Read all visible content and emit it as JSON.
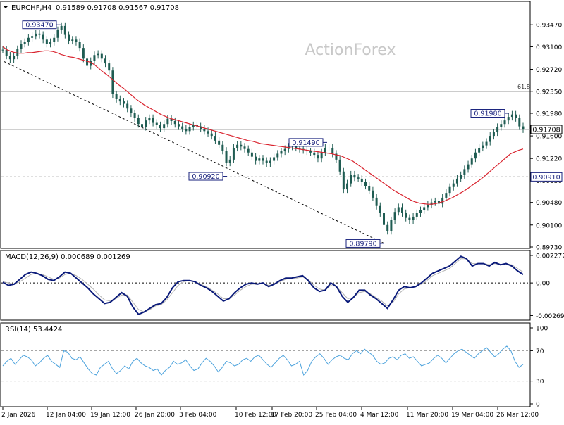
{
  "header": {
    "symbol": "EURCHF,H4",
    "ohlc": "0.91589 0.91708 0.91567 0.91708"
  },
  "watermark": "ActionForex",
  "colors": {
    "candle": "#1f5c52",
    "ma": "#d9232e",
    "macd": "#0a1a7a",
    "signal": "#b3b3b3",
    "rsi": "#4da3dd",
    "label_border": "#1a237e",
    "grid_line": "#000000"
  },
  "chart_data": [
    {
      "type": "line",
      "panel": "price",
      "title": "EURCHF,H4",
      "ylim": [
        0.8973,
        0.9365
      ],
      "y_ticks": [
        "0.93470",
        "0.93100",
        "0.92720",
        "0.92350",
        "0.91980",
        "0.91600",
        "0.91220",
        "0.90850",
        "0.90480",
        "0.90100",
        "0.89730"
      ],
      "current_price": "0.91708",
      "level_line": "0.90910",
      "fib_line": {
        "label": "61.8",
        "value": 0.9235
      },
      "annotations": [
        {
          "text": "0.93470",
          "value": 0.9347,
          "date": "12 Jan 04:00"
        },
        {
          "text": "0.90920",
          "value": 0.9092,
          "date": "3 Feb 04:00"
        },
        {
          "text": "0.91490",
          "value": 0.9149,
          "date": "25 Feb 04:00"
        },
        {
          "text": "0.89790",
          "value": 0.8979,
          "date": "4 Mar 12:00"
        },
        {
          "text": "0.91980",
          "value": 0.9198,
          "date": "26 Mar 04:00"
        }
      ],
      "series": [
        {
          "name": "close",
          "values": [
            0.9305,
            0.9295,
            0.9289,
            0.9295,
            0.9306,
            0.9315,
            0.9318,
            0.9325,
            0.9328,
            0.9332,
            0.933,
            0.9322,
            0.9315,
            0.9318,
            0.9325,
            0.9338,
            0.9345,
            0.933,
            0.932,
            0.9322,
            0.9318,
            0.9308,
            0.929,
            0.9278,
            0.9286,
            0.9296,
            0.9298,
            0.929,
            0.9282,
            0.927,
            0.923,
            0.9222,
            0.9218,
            0.9214,
            0.9206,
            0.9198,
            0.919,
            0.918,
            0.9175,
            0.9186,
            0.919,
            0.9182,
            0.9178,
            0.9173,
            0.918,
            0.9189,
            0.9185,
            0.918,
            0.9176,
            0.9172,
            0.9168,
            0.9175,
            0.9178,
            0.9176,
            0.9172,
            0.9168,
            0.9164,
            0.916,
            0.9152,
            0.9145,
            0.9135,
            0.9115,
            0.912,
            0.914,
            0.9145,
            0.9142,
            0.9138,
            0.9132,
            0.9125,
            0.9118,
            0.9122,
            0.9118,
            0.9114,
            0.9118,
            0.9124,
            0.913,
            0.9134,
            0.9138,
            0.9142,
            0.9145,
            0.914,
            0.9138,
            0.9136,
            0.9134,
            0.9132,
            0.9128,
            0.9122,
            0.9132,
            0.914,
            0.914,
            0.913,
            0.912,
            0.91,
            0.907,
            0.908,
            0.9095,
            0.909,
            0.9088,
            0.9082,
            0.9076,
            0.9068,
            0.9056,
            0.9042,
            0.903,
            0.901,
            0.9,
            0.9018,
            0.9032,
            0.904,
            0.903,
            0.9022,
            0.9018,
            0.9024,
            0.903,
            0.9035,
            0.904,
            0.9044,
            0.9048,
            0.905,
            0.9046,
            0.9056,
            0.9064,
            0.9074,
            0.908,
            0.9088,
            0.9094,
            0.9104,
            0.9112,
            0.9122,
            0.9132,
            0.914,
            0.9144,
            0.915,
            0.916,
            0.9166,
            0.9175,
            0.918,
            0.9186,
            0.9192,
            0.9196,
            0.919,
            0.9176,
            0.9171
          ]
        },
        {
          "name": "MA",
          "values": [
            0.931,
            0.9305,
            0.9302,
            0.93,
            0.9299,
            0.9299,
            0.93,
            0.93,
            0.9301,
            0.9302,
            0.9303,
            0.9303,
            0.9302,
            0.93,
            0.9297,
            0.9295,
            0.9293,
            0.9292,
            0.929,
            0.9288,
            0.9286,
            0.9284,
            0.928,
            0.9274,
            0.9268,
            0.9263,
            0.9257,
            0.9251,
            0.9245,
            0.924,
            0.9234,
            0.9228,
            0.9222,
            0.9217,
            0.9212,
            0.9208,
            0.9204,
            0.92,
            0.9196,
            0.9193,
            0.919,
            0.9188,
            0.9186,
            0.9184,
            0.9182,
            0.918,
            0.9178,
            0.9176,
            0.9174,
            0.9172,
            0.917,
            0.9168,
            0.9166,
            0.9164,
            0.9162,
            0.916,
            0.9158,
            0.9156,
            0.9154,
            0.9152,
            0.9151,
            0.9149,
            0.9147,
            0.9146,
            0.9145,
            0.9144,
            0.9143,
            0.9142,
            0.9141,
            0.914,
            0.9139,
            0.9138,
            0.9137,
            0.9136,
            0.9135,
            0.9134,
            0.9133,
            0.9132,
            0.9131,
            0.913,
            0.9128,
            0.9127,
            0.9124,
            0.9121,
            0.9118,
            0.9113,
            0.9108,
            0.9103,
            0.9098,
            0.9093,
            0.9088,
            0.9083,
            0.9078,
            0.9073,
            0.9068,
            0.9064,
            0.906,
            0.9056,
            0.9052,
            0.9049,
            0.9047,
            0.9046,
            0.9045,
            0.9045,
            0.9046,
            0.9048,
            0.905,
            0.9053,
            0.9056,
            0.906,
            0.9064,
            0.9068,
            0.9073,
            0.9078,
            0.9083,
            0.9088,
            0.9094,
            0.91,
            0.9106,
            0.9112,
            0.9118,
            0.9124,
            0.913,
            0.9133,
            0.9136,
            0.9138
          ]
        }
      ]
    },
    {
      "type": "line",
      "panel": "macd",
      "title": "MACD(12,26,9) 0.000689 0.001269",
      "ylim": [
        -0.0029,
        0.00245
      ],
      "y_ticks": [
        "0.002277",
        "0.00",
        "-0.002693"
      ],
      "series": [
        {
          "name": "MACD",
          "values": [
            5e-05,
            -0.0002,
            -0.0001,
            0.0003,
            0.0007,
            0.0009,
            0.0008,
            0.0006,
            0.0003,
            0.0002,
            0.0005,
            0.0009,
            0.0008,
            0.0004,
            0.0,
            -0.0004,
            -0.0009,
            -0.0013,
            -0.0017,
            -0.0016,
            -0.0012,
            -0.0008,
            -0.0011,
            -0.002,
            -0.0026,
            -0.0024,
            -0.0021,
            -0.0018,
            -0.0017,
            -0.0012,
            -0.0004,
            0.0001,
            0.0002,
            0.0002,
            0.0001,
            -0.0002,
            -0.0004,
            -0.0007,
            -0.0011,
            -0.0015,
            -0.0013,
            -0.0008,
            -0.0004,
            -0.0001,
            0.0,
            -0.0001,
            0.0,
            -0.0003,
            -0.0001,
            0.0002,
            0.0004,
            0.0004,
            0.0005,
            0.0006,
            0.0002,
            -0.0004,
            -0.0007,
            -0.0006,
            0.0,
            -0.0003,
            -0.0011,
            -0.0016,
            -0.0012,
            -0.0006,
            -0.0006,
            -0.001,
            -0.0013,
            -0.0017,
            -0.0021,
            -0.0014,
            -0.0006,
            -0.0003,
            -0.0004,
            -0.0003,
            0.0,
            0.0004,
            0.0008,
            0.001,
            0.0012,
            0.0014,
            0.0018,
            0.0022,
            0.002,
            0.0014,
            0.0016,
            0.0016,
            0.0014,
            0.0017,
            0.0015,
            0.0016,
            0.0014,
            0.001,
            0.0007
          ]
        },
        {
          "name": "Signal",
          "values": [
            0.0001,
            0.0,
            -0.0001,
            0.0001,
            0.0004,
            0.0007,
            0.0008,
            0.0007,
            0.0005,
            0.0003,
            0.0004,
            0.0007,
            0.0008,
            0.0006,
            0.0003,
            -0.0001,
            -0.0005,
            -0.001,
            -0.0014,
            -0.0015,
            -0.0013,
            -0.001,
            -0.001,
            -0.0016,
            -0.0022,
            -0.0024,
            -0.0022,
            -0.0019,
            -0.0018,
            -0.0014,
            -0.0008,
            -0.0002,
            0.0001,
            0.0002,
            0.0001,
            -0.0001,
            -0.0003,
            -0.0006,
            -0.0009,
            -0.0013,
            -0.0013,
            -0.001,
            -0.0006,
            -0.0003,
            -0.0001,
            -0.0001,
            0.0,
            -0.0002,
            -0.0001,
            0.0001,
            0.0003,
            0.0004,
            0.0004,
            0.0005,
            0.0003,
            -0.0002,
            -0.0005,
            -0.0006,
            -0.0002,
            -0.0003,
            -0.0008,
            -0.0013,
            -0.0012,
            -0.0008,
            -0.0007,
            -0.0009,
            -0.0012,
            -0.0015,
            -0.0019,
            -0.0016,
            -0.0009,
            -0.0005,
            -0.0004,
            -0.0003,
            -0.0001,
            0.0002,
            0.0006,
            0.0008,
            0.001,
            0.0012,
            0.0016,
            0.002,
            0.002,
            0.0016,
            0.0016,
            0.0016,
            0.0015,
            0.0016,
            0.0015,
            0.0016,
            0.0015,
            0.0012,
            0.0009
          ]
        }
      ]
    },
    {
      "type": "line",
      "panel": "rsi",
      "title": "RSI(14) 53.4424",
      "ylim": [
        0,
        100
      ],
      "y_ticks": [
        "100",
        "70",
        "30",
        "0"
      ],
      "levels": [
        70,
        30
      ],
      "series": [
        {
          "name": "RSI",
          "values": [
            50,
            56,
            60,
            52,
            58,
            64,
            62,
            58,
            50,
            54,
            60,
            64,
            56,
            52,
            48,
            70,
            68,
            60,
            58,
            62,
            54,
            46,
            40,
            38,
            48,
            52,
            56,
            46,
            40,
            44,
            50,
            46,
            56,
            60,
            54,
            50,
            48,
            44,
            46,
            38,
            44,
            48,
            56,
            52,
            54,
            58,
            50,
            44,
            46,
            54,
            60,
            56,
            50,
            42,
            48,
            56,
            54,
            50,
            52,
            58,
            60,
            56,
            62,
            64,
            58,
            52,
            48,
            54,
            60,
            64,
            58,
            50,
            52,
            56,
            38,
            44,
            56,
            62,
            66,
            60,
            52,
            58,
            62,
            64,
            60,
            58,
            66,
            70,
            66,
            72,
            68,
            64,
            56,
            52,
            54,
            60,
            62,
            58,
            64,
            66,
            60,
            62,
            56,
            50,
            52,
            54,
            60,
            64,
            60,
            54,
            60,
            66,
            70,
            72,
            68,
            64,
            60,
            66,
            70,
            74,
            68,
            62,
            66,
            72,
            76,
            70,
            56,
            48,
            52
          ]
        }
      ]
    },
    {
      "type": "line",
      "panel": "x-axis",
      "categories": [
        "2 Jan 2026",
        "12 Jan 04:00",
        "19 Jan 12:00",
        "26 Jan 20:00",
        "3 Feb 04:00",
        "10 Feb 12:00",
        "17 Feb 20:00",
        "25 Feb 04:00",
        "4 Mar 12:00",
        "11 Mar 20:00",
        "19 Mar 04:00",
        "26 Mar 12:00"
      ]
    }
  ]
}
